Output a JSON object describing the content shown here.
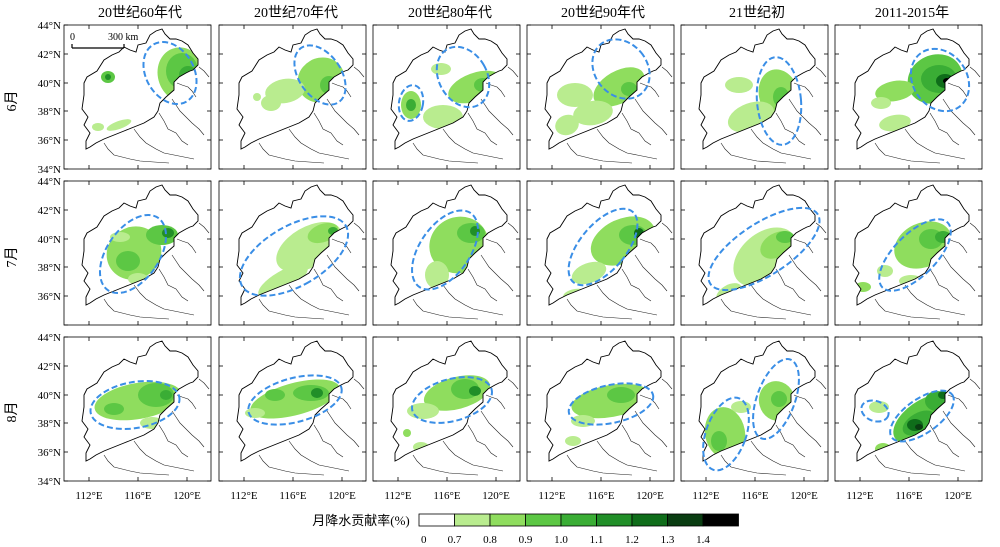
{
  "columns": [
    "20世纪60年代",
    "20世纪70年代",
    "20世纪80年代",
    "20世纪90年代",
    "21世纪初",
    "2011-2015年"
  ],
  "rows": [
    "6月",
    "7月",
    "8月"
  ],
  "y_ticks": [
    "44°N",
    "42°N",
    "40°N",
    "38°N",
    "36°N",
    "34°N"
  ],
  "x_ticks": [
    "112°E",
    "116°E",
    "120°E"
  ],
  "scale_bar": {
    "zero": "0",
    "label": "300 km"
  },
  "legend": {
    "title": "月降水贡献率(%)",
    "labels": [
      "0",
      "0.7",
      "0.8",
      "0.9",
      "1.0",
      "1.1",
      "1.2",
      "1.3",
      "1.4"
    ],
    "colors": [
      "#ffffff",
      "#b9ec8f",
      "#8fdd5e",
      "#5cc744",
      "#3aad35",
      "#218f28",
      "#0f6d1a",
      "#0a3d12",
      "#000000"
    ]
  },
  "colors": {
    "outline": "#000000",
    "ellipse": "#3a8ee6"
  }
}
